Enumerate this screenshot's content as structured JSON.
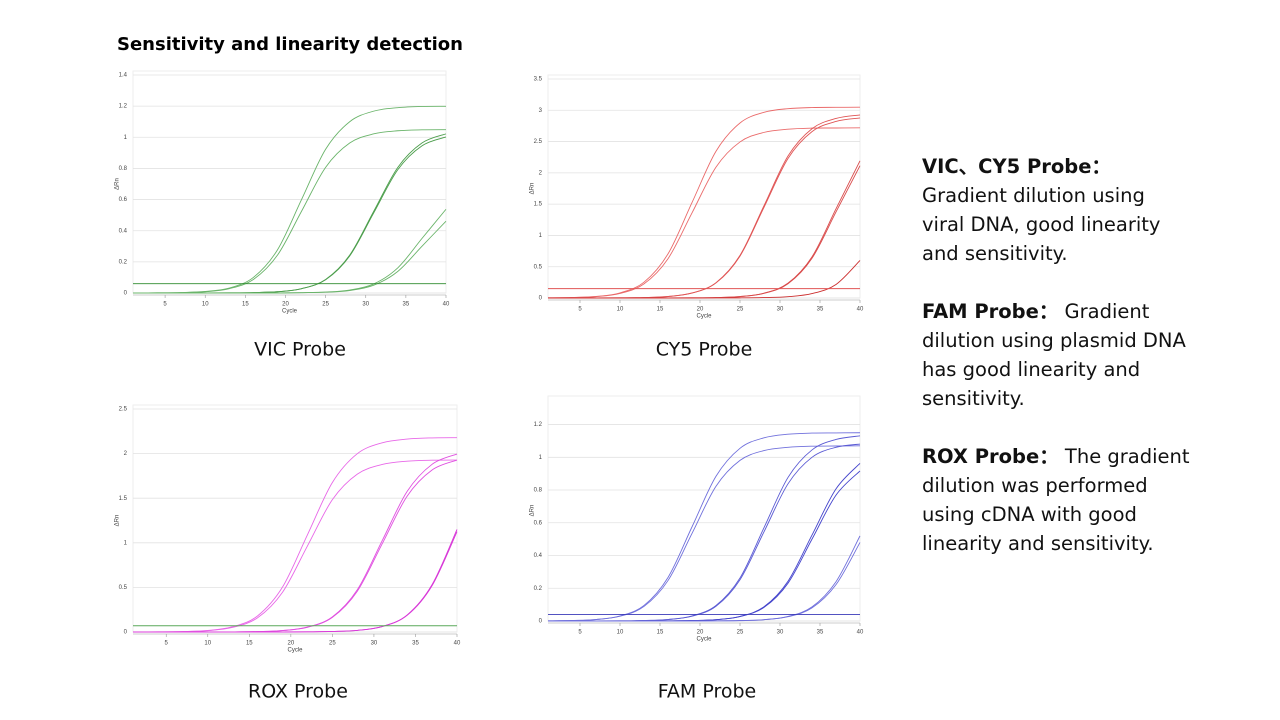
{
  "title": "Sensitivity and linearity detection",
  "chart_data": [
    {
      "type": "line",
      "caption": "VIC Probe",
      "x_label": "Cycle",
      "y_label": "ΔRn",
      "x": [
        1,
        4,
        7,
        10,
        13,
        16,
        19,
        22,
        25,
        28,
        31,
        34,
        37,
        40
      ],
      "xlim": [
        1,
        40
      ],
      "xticks": [
        5,
        10,
        15,
        20,
        25,
        30,
        35,
        40
      ],
      "ylim": [
        0,
        1.4
      ],
      "yticks": [
        0,
        0.2,
        0.4,
        0.6,
        0.8,
        1,
        1.2,
        1.4
      ],
      "grid": true,
      "series": [
        {
          "color": "#6ab46a",
          "values": [
            0,
            0.001,
            0.003,
            0.01,
            0.032,
            0.1,
            0.277,
            0.6,
            0.923,
            1.1,
            1.168,
            1.19,
            1.198,
            1.199
          ]
        },
        {
          "color": "#6ab46a",
          "values": [
            0,
            0.001,
            0.003,
            0.008,
            0.028,
            0.087,
            0.243,
            0.525,
            0.807,
            0.963,
            1.022,
            1.042,
            1.048,
            1.049
          ]
        },
        {
          "color": "#4c9e4c",
          "values": [
            0,
            0,
            0,
            0,
            0.001,
            0.003,
            0.008,
            0.028,
            0.087,
            0.243,
            0.525,
            0.807,
            0.963,
            1.022
          ]
        },
        {
          "color": "#4c9e4c",
          "values": [
            0,
            0,
            0,
            0,
            0.001,
            0.003,
            0.008,
            0.028,
            0.085,
            0.238,
            0.515,
            0.792,
            0.945,
            1.002
          ]
        },
        {
          "color": "#6ab46a",
          "values": [
            0,
            0,
            0,
            0,
            0,
            0,
            0,
            0.002,
            0.006,
            0.019,
            0.058,
            0.162,
            0.35,
            0.538
          ]
        },
        {
          "color": "#6ab46a",
          "values": [
            0,
            0,
            0,
            0,
            0,
            0,
            0,
            0.002,
            0.005,
            0.016,
            0.05,
            0.139,
            0.3,
            0.461
          ]
        },
        {
          "color": "#2e8b2e",
          "values": [
            0.06,
            0.06,
            0.06,
            0.06,
            0.06,
            0.06,
            0.06,
            0.06,
            0.06,
            0.06,
            0.06,
            0.06,
            0.06,
            0.06
          ]
        }
      ]
    },
    {
      "type": "line",
      "caption": "CY5 Probe",
      "x_label": "Cycle",
      "y_label": "ΔRn",
      "x": [
        1,
        4,
        7,
        10,
        13,
        16,
        19,
        22,
        25,
        28,
        31,
        34,
        37,
        40
      ],
      "xlim": [
        1,
        40
      ],
      "xticks": [
        5,
        10,
        15,
        20,
        25,
        30,
        35,
        40
      ],
      "ylim": [
        0,
        3.5
      ],
      "yticks": [
        0,
        0.5,
        1,
        1.5,
        2,
        2.5,
        3,
        3.5
      ],
      "grid": true,
      "series": [
        {
          "color": "#ea6a6a",
          "values": [
            0.002,
            0.008,
            0.024,
            0.082,
            0.253,
            0.705,
            1.525,
            2.345,
            2.797,
            2.968,
            3.026,
            3.044,
            3.047,
            3.05
          ]
        },
        {
          "color": "#ea6a6a",
          "values": [
            0.002,
            0.007,
            0.022,
            0.073,
            0.226,
            0.628,
            1.36,
            2.092,
            2.494,
            2.647,
            2.698,
            2.715,
            2.717,
            2.72
          ]
        },
        {
          "color": "#e05555",
          "values": [
            0,
            0,
            0,
            0.002,
            0.007,
            0.024,
            0.08,
            0.245,
            0.681,
            1.475,
            2.269,
            2.705,
            2.87,
            2.926
          ]
        },
        {
          "color": "#e05555",
          "values": [
            0,
            0,
            0,
            0.002,
            0.007,
            0.023,
            0.078,
            0.241,
            0.67,
            1.45,
            2.23,
            2.659,
            2.822,
            2.877
          ]
        },
        {
          "color": "#d94a4a",
          "values": [
            0,
            0,
            0,
            0,
            0,
            0,
            0.002,
            0.007,
            0.023,
            0.077,
            0.237,
            0.658,
            1.425,
            2.192
          ]
        },
        {
          "color": "#d94a4a",
          "values": [
            0,
            0,
            0,
            0,
            0,
            0,
            0.002,
            0.007,
            0.022,
            0.074,
            0.228,
            0.635,
            1.375,
            2.115
          ]
        },
        {
          "color": "#cc2e2e",
          "values": [
            0,
            0,
            0,
            0,
            0,
            0,
            0,
            0.001,
            0.002,
            0.007,
            0.021,
            0.07,
            0.216,
            0.6
          ]
        },
        {
          "color": "#e05555",
          "values": [
            0.15,
            0.15,
            0.15,
            0.15,
            0.15,
            0.15,
            0.15,
            0.15,
            0.15,
            0.15,
            0.15,
            0.15,
            0.15,
            0.15
          ]
        }
      ]
    },
    {
      "type": "line",
      "caption": "ROX Probe",
      "x_label": "Cycle",
      "y_label": "ΔRn",
      "x": [
        1,
        4,
        7,
        10,
        13,
        16,
        19,
        22,
        25,
        28,
        31,
        34,
        37,
        40
      ],
      "xlim": [
        1,
        40
      ],
      "xticks": [
        5,
        10,
        15,
        20,
        25,
        30,
        35,
        40
      ],
      "ylim": [
        0,
        2.5
      ],
      "yticks": [
        0,
        0.5,
        1,
        1.5,
        2,
        2.5
      ],
      "grid": true,
      "series": [
        {
          "color": "#e868e8",
          "values": [
            0,
            0.002,
            0.005,
            0.017,
            0.059,
            0.181,
            0.504,
            1.09,
            1.676,
            1.999,
            2.121,
            2.163,
            2.176,
            2.178
          ]
        },
        {
          "color": "#e868e8",
          "values": [
            0,
            0.001,
            0.005,
            0.015,
            0.052,
            0.16,
            0.446,
            0.965,
            1.484,
            1.77,
            1.878,
            1.915,
            1.926,
            1.928
          ]
        },
        {
          "color": "#e050e0",
          "values": [
            0,
            0,
            0,
            0,
            0.001,
            0.005,
            0.016,
            0.055,
            0.17,
            0.474,
            1.025,
            1.576,
            1.88,
            1.995
          ]
        },
        {
          "color": "#e050e0",
          "values": [
            0,
            0,
            0,
            0,
            0.001,
            0.005,
            0.016,
            0.053,
            0.164,
            0.457,
            0.99,
            1.523,
            1.816,
            1.927
          ]
        },
        {
          "color": "#d838d8",
          "values": [
            0,
            0,
            0,
            0,
            0,
            0,
            0,
            0.002,
            0.006,
            0.018,
            0.062,
            0.191,
            0.531,
            1.15
          ]
        },
        {
          "color": "#d838d8",
          "values": [
            0,
            0,
            0,
            0,
            0,
            0,
            0,
            0.002,
            0.006,
            0.018,
            0.061,
            0.187,
            0.52,
            1.125
          ]
        },
        {
          "color": "#5aa85a",
          "values": [
            0.07,
            0.07,
            0.07,
            0.07,
            0.07,
            0.07,
            0.07,
            0.07,
            0.07,
            0.07,
            0.07,
            0.07,
            0.07,
            0.07
          ]
        }
      ]
    },
    {
      "type": "line",
      "caption": "FAM Probe",
      "x_label": "Cycle",
      "y_label": "ΔRn",
      "x": [
        1,
        4,
        7,
        10,
        13,
        16,
        19,
        22,
        25,
        28,
        31,
        34,
        37,
        40
      ],
      "xlim": [
        1,
        40
      ],
      "xticks": [
        5,
        10,
        15,
        20,
        25,
        30,
        35,
        40
      ],
      "ylim": [
        0,
        1.35
      ],
      "yticks": [
        0,
        0.2,
        0.4,
        0.6,
        0.8,
        1,
        1.2
      ],
      "grid": true,
      "series": [
        {
          "color": "#7070dc",
          "values": [
            0.001,
            0.003,
            0.009,
            0.031,
            0.095,
            0.266,
            0.575,
            0.884,
            1.055,
            1.119,
            1.141,
            1.148,
            1.149,
            1.15
          ]
        },
        {
          "color": "#7070dc",
          "values": [
            0.001,
            0.003,
            0.009,
            0.029,
            0.089,
            0.247,
            0.535,
            0.823,
            0.981,
            1.041,
            1.061,
            1.068,
            1.069,
            1.07
          ]
        },
        {
          "color": "#5a5ad4",
          "values": [
            0,
            0,
            0,
            0.001,
            0.003,
            0.009,
            0.031,
            0.095,
            0.263,
            0.57,
            0.877,
            1.045,
            1.109,
            1.131
          ]
        },
        {
          "color": "#5a5ad4",
          "values": [
            0,
            0,
            0,
            0.001,
            0.003,
            0.009,
            0.029,
            0.09,
            0.252,
            0.545,
            0.838,
            1.0,
            1.061,
            1.081
          ]
        },
        {
          "color": "#4444cc",
          "values": [
            0,
            0,
            0,
            0,
            0,
            0.001,
            0.003,
            0.008,
            0.028,
            0.087,
            0.243,
            0.525,
            0.807,
            0.963
          ]
        },
        {
          "color": "#4444cc",
          "values": [
            0,
            0,
            0,
            0,
            0,
            0.001,
            0.003,
            0.008,
            0.027,
            0.083,
            0.231,
            0.5,
            0.769,
            0.917
          ]
        },
        {
          "color": "#7070dc",
          "values": [
            0,
            0,
            0,
            0,
            0,
            0,
            0,
            0.001,
            0.003,
            0.008,
            0.028,
            0.086,
            0.24,
            0.52
          ]
        },
        {
          "color": "#7070dc",
          "values": [
            0,
            0,
            0,
            0,
            0,
            0,
            0,
            0.001,
            0.002,
            0.008,
            0.026,
            0.08,
            0.222,
            0.48
          ]
        },
        {
          "color": "#3a3ab8",
          "values": [
            0.04,
            0.04,
            0.04,
            0.04,
            0.04,
            0.04,
            0.04,
            0.04,
            0.04,
            0.04,
            0.04,
            0.04,
            0.04,
            0.04
          ]
        }
      ]
    }
  ],
  "notes": [
    {
      "label": "VIC、CY5 Probe：",
      "text": "Gradient dilution using viral DNA, good linearity and sensitivity."
    },
    {
      "label": "FAM Probe：",
      "text": " Gradient dilution using plasmid DNA has good linearity and sensitivity."
    },
    {
      "label": "ROX Probe：",
      "text": " The gradient dilution was performed using cDNA with good linearity and sensitivity."
    }
  ]
}
